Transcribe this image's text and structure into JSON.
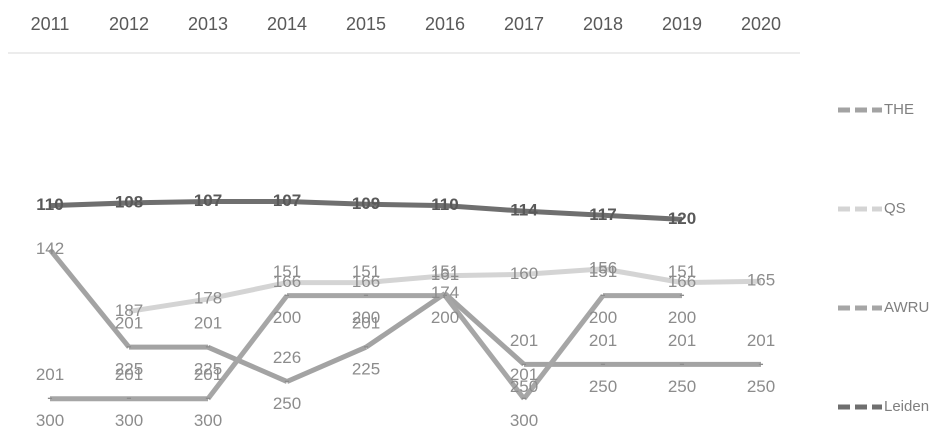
{
  "chart_data": {
    "type": "line",
    "categories": [
      "2011",
      "2012",
      "2013",
      "2014",
      "2015",
      "2016",
      "2017",
      "2018",
      "2019",
      "2020"
    ],
    "ylim": [
      274,
      4
    ],
    "inverted": true,
    "range_separator": "-",
    "series": [
      {
        "name": "THE",
        "color": "#a3a3a3",
        "values": [
          142,
          [
            201,
            225
          ],
          [
            201,
            225
          ],
          [
            226,
            250
          ],
          [
            201,
            225
          ],
          174,
          [
            201,
            250
          ],
          [
            201,
            250
          ],
          [
            201,
            250
          ],
          [
            201,
            250
          ]
        ]
      },
      {
        "name": "QS",
        "color": "#d4d4d4",
        "values": [
          null,
          187,
          178,
          166,
          166,
          161,
          160,
          156,
          166,
          165
        ]
      },
      {
        "name": "AWRU",
        "color": "#a6a6a6",
        "values": [
          [
            201,
            300
          ],
          [
            201,
            300
          ],
          [
            201,
            300
          ],
          [
            151,
            200
          ],
          [
            151,
            200
          ],
          [
            151,
            200
          ],
          [
            201,
            300
          ],
          [
            151,
            200
          ],
          [
            151,
            200
          ],
          null
        ]
      },
      {
        "name": "Leiden",
        "color": "#6f6f6f",
        "values": [
          110,
          108,
          107,
          107,
          109,
          110,
          114,
          117,
          120,
          null
        ]
      }
    ],
    "legend": "right"
  }
}
